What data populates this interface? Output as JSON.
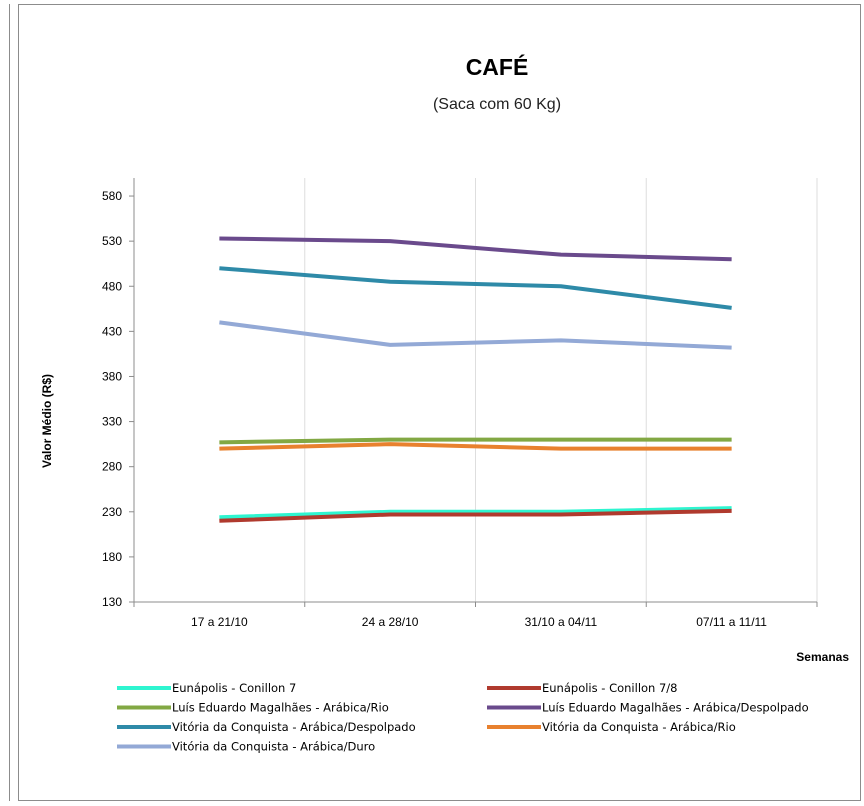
{
  "chart_data": {
    "type": "line",
    "title": "CAFÉ",
    "subtitle": "(Saca com 60 Kg)",
    "xlabel": "Semanas",
    "ylabel": "Valor Médio (R$)",
    "categories": [
      "17 a 21/10",
      "24 a 28/10",
      "31/10 a 04/11",
      "07/11 a 11/11"
    ],
    "ylim": [
      130,
      600
    ],
    "yticks": [
      130,
      180,
      230,
      280,
      330,
      380,
      430,
      480,
      530,
      580
    ],
    "grid": "vertical",
    "legend_position": "bottom",
    "series": [
      {
        "name": "Eunápolis - Conillon 7",
        "color": "#2ef5d0",
        "values": [
          224,
          230,
          230,
          234
        ]
      },
      {
        "name": "Eunápolis - Conillon 7/8",
        "color": "#b03a2e",
        "values": [
          220,
          227,
          227,
          231
        ]
      },
      {
        "name": "Luís Eduardo Magalhães - Arábica/Rio",
        "color": "#82a843",
        "values": [
          307,
          310,
          310,
          310
        ]
      },
      {
        "name": "Luís Eduardo Magalhães - Arábica/Despolpado",
        "color": "#6a4a8c",
        "values": [
          533,
          530,
          515,
          510
        ]
      },
      {
        "name": "Vitória da Conquista - Arábica/Despolpado",
        "color": "#2e8aa8",
        "values": [
          500,
          485,
          480,
          456
        ]
      },
      {
        "name": "Vitória da Conquista - Arábica/Rio",
        "color": "#e8812e",
        "values": [
          300,
          305,
          300,
          300
        ]
      },
      {
        "name": "Vitória da Conquista - Arábica/Duro",
        "color": "#93a9d6",
        "values": [
          440,
          415,
          420,
          412
        ]
      }
    ]
  }
}
